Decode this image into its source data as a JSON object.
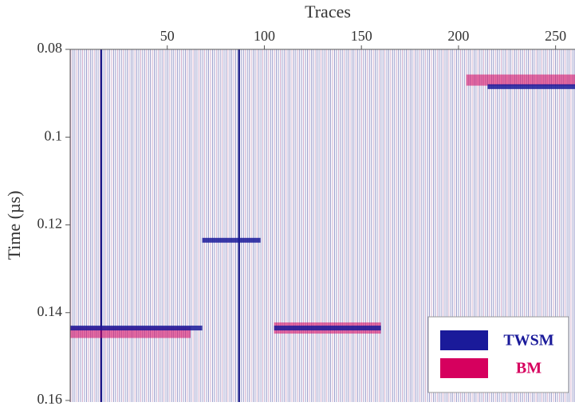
{
  "chart_data": {
    "type": "wiggle",
    "x_label": "Traces",
    "y_label": "Time (µs)",
    "xlim": [
      0,
      260
    ],
    "xticks": [
      50,
      100,
      150,
      200,
      250
    ],
    "ylim": [
      0.08,
      0.16
    ],
    "yticks": [
      0.08,
      0.1,
      0.12,
      0.14,
      0.16
    ],
    "y_inverted": true,
    "highlight_traces": [
      16,
      87
    ],
    "series": [
      {
        "name": "BM",
        "color": "#d6005e",
        "x_start": [
          0,
          105,
          204
        ],
        "x_end": [
          62,
          160,
          260
        ],
        "values": [
          0.1445,
          0.1435,
          0.087
        ]
      },
      {
        "name": "TWSM",
        "color": "#1a1a9a",
        "x_start": [
          0,
          105,
          215,
          68
        ],
        "x_end": [
          68,
          160,
          260,
          98
        ],
        "values": [
          0.1435,
          0.1435,
          0.0885,
          0.1235
        ]
      }
    ],
    "legend_order": [
      1,
      0
    ]
  }
}
